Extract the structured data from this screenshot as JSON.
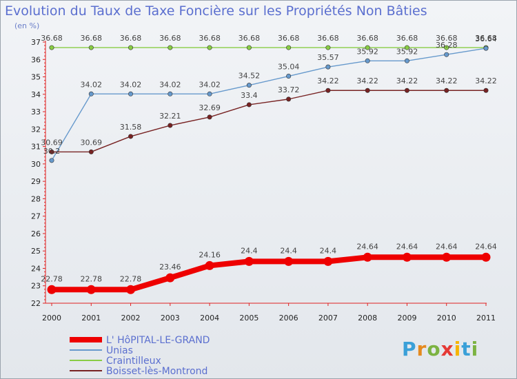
{
  "title": "Evolution du Taux de Taxe Foncière sur les Propriétés Non Bâties",
  "unit": "(en %)",
  "logo_text": "Proxiti",
  "chart_data": {
    "type": "line",
    "x": [
      "2000",
      "2001",
      "2002",
      "2003",
      "2004",
      "2005",
      "2006",
      "2007",
      "2008",
      "2009",
      "2010",
      "2011"
    ],
    "ylim": [
      22,
      37
    ],
    "yticks": [
      22,
      23,
      24,
      25,
      26,
      27,
      28,
      29,
      30,
      31,
      32,
      33,
      34,
      35,
      36,
      37
    ],
    "grid": false,
    "legend": "bottom-left",
    "series": [
      {
        "name": "L' HôPITAL-LE-GRAND",
        "color": "#ee0000",
        "values": [
          22.78,
          22.78,
          22.78,
          23.46,
          24.16,
          24.4,
          24.4,
          24.4,
          24.64,
          24.64,
          24.64,
          24.64
        ],
        "labels": [
          "22.78",
          "22.78",
          "22.78",
          "23.46",
          "24.16",
          "24.4",
          "24.4",
          "24.4",
          "24.64",
          "24.64",
          "24.64",
          "24.64"
        ]
      },
      {
        "name": "Unias",
        "color": "#6699cc",
        "values": [
          30.2,
          34.02,
          34.02,
          34.02,
          34.02,
          34.52,
          35.04,
          35.57,
          35.92,
          35.92,
          36.28,
          36.64
        ],
        "labels": [
          "30.2",
          "34.02",
          "34.02",
          "34.02",
          "34.02",
          "34.52",
          "35.04",
          "35.57",
          "35.92",
          "35.92",
          "36.28",
          "36.64"
        ]
      },
      {
        "name": "Craintilleux",
        "color": "#88cc44",
        "values": [
          36.68,
          36.68,
          36.68,
          36.68,
          36.68,
          36.68,
          36.68,
          36.68,
          36.68,
          36.68,
          36.68,
          36.68
        ],
        "labels": [
          "36.68",
          "36.68",
          "36.68",
          "36.68",
          "36.68",
          "36.68",
          "36.68",
          "36.68",
          "36.68",
          "36.68",
          "36.68",
          "36.68"
        ]
      },
      {
        "name": "Boisset-lès-Montrond",
        "color": "#772222",
        "values": [
          30.69,
          30.69,
          31.58,
          32.21,
          32.69,
          33.4,
          33.72,
          34.22,
          34.22,
          34.22,
          34.22,
          34.22
        ],
        "labels": [
          "30.69",
          "30.69",
          "31.58",
          "32.21",
          "32.69",
          "33.4",
          "33.72",
          "34.22",
          "34.22",
          "34.22",
          "34.22",
          "34.22"
        ]
      }
    ]
  }
}
